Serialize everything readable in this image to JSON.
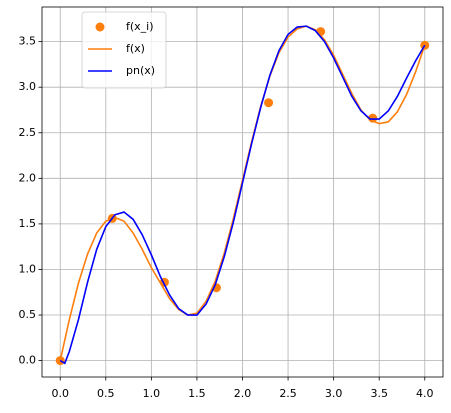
{
  "chart_data": {
    "type": "line",
    "xlim": [
      -0.2,
      4.2
    ],
    "ylim": [
      -0.18,
      3.88
    ],
    "xticks": [
      {
        "value": 0,
        "label": "0.0"
      },
      0.5,
      {
        "value": 1,
        "label": "1.0"
      },
      1.5,
      {
        "value": 2,
        "label": "2.0"
      },
      2.5,
      {
        "value": 3,
        "label": "3.0"
      },
      3.5,
      {
        "value": 4,
        "label": "4.0"
      }
    ],
    "yticks": [
      {
        "value": 0,
        "label": "0.0"
      },
      0.5,
      {
        "value": 1,
        "label": "1.0"
      },
      1.5,
      {
        "value": 2,
        "label": "2.0"
      },
      2.5,
      {
        "value": 3,
        "label": "3.0"
      },
      3.5
    ],
    "grid": true,
    "legend": "upper-left",
    "series": [
      {
        "name": "f(x_i)",
        "color": "#ff7f0e",
        "style": "marker",
        "x": [
          0,
          0.571,
          1.143,
          1.714,
          2.286,
          2.857,
          3.429,
          4.0
        ],
        "values": [
          0,
          1.56,
          0.86,
          0.8,
          2.83,
          3.61,
          2.66,
          3.46
        ]
      },
      {
        "name": "f(x)",
        "color": "#ff7f0e",
        "style": "line",
        "x": [
          0,
          0.1,
          0.2,
          0.3,
          0.4,
          0.5,
          0.6,
          0.7,
          0.8,
          0.9,
          1.0,
          1.1,
          1.2,
          1.3,
          1.4,
          1.5,
          1.6,
          1.7,
          1.8,
          1.9,
          2.0,
          2.1,
          2.2,
          2.3,
          2.4,
          2.5,
          2.6,
          2.7,
          2.8,
          2.9,
          3.0,
          3.1,
          3.2,
          3.3,
          3.4,
          3.5,
          3.6,
          3.7,
          3.8,
          3.9,
          4.0
        ],
        "values": [
          0,
          0.45,
          0.85,
          1.17,
          1.4,
          1.53,
          1.57,
          1.53,
          1.4,
          1.22,
          1.02,
          0.85,
          0.68,
          0.56,
          0.5,
          0.52,
          0.65,
          0.87,
          1.18,
          1.56,
          1.98,
          2.4,
          2.79,
          3.12,
          3.38,
          3.55,
          3.64,
          3.67,
          3.63,
          3.52,
          3.35,
          3.14,
          2.93,
          2.75,
          2.64,
          2.6,
          2.62,
          2.73,
          2.92,
          3.17,
          3.46
        ]
      },
      {
        "name": "pn(x)",
        "color": "#0000ff",
        "style": "line",
        "x": [
          0,
          0.05,
          0.1,
          0.2,
          0.3,
          0.4,
          0.5,
          0.6,
          0.7,
          0.8,
          0.9,
          1.0,
          1.1,
          1.2,
          1.3,
          1.4,
          1.5,
          1.6,
          1.7,
          1.8,
          1.9,
          2.0,
          2.1,
          2.2,
          2.3,
          2.4,
          2.5,
          2.6,
          2.7,
          2.8,
          2.9,
          3.0,
          3.1,
          3.2,
          3.3,
          3.4,
          3.5,
          3.6,
          3.7,
          3.8,
          3.9,
          4.0
        ],
        "values": [
          0,
          -0.03,
          0.1,
          0.45,
          0.86,
          1.22,
          1.47,
          1.6,
          1.63,
          1.55,
          1.38,
          1.16,
          0.92,
          0.72,
          0.57,
          0.5,
          0.5,
          0.62,
          0.83,
          1.14,
          1.52,
          1.95,
          2.38,
          2.78,
          3.13,
          3.4,
          3.58,
          3.66,
          3.67,
          3.62,
          3.5,
          3.32,
          3.11,
          2.9,
          2.74,
          2.65,
          2.65,
          2.74,
          2.9,
          3.1,
          3.29,
          3.46
        ]
      }
    ]
  }
}
